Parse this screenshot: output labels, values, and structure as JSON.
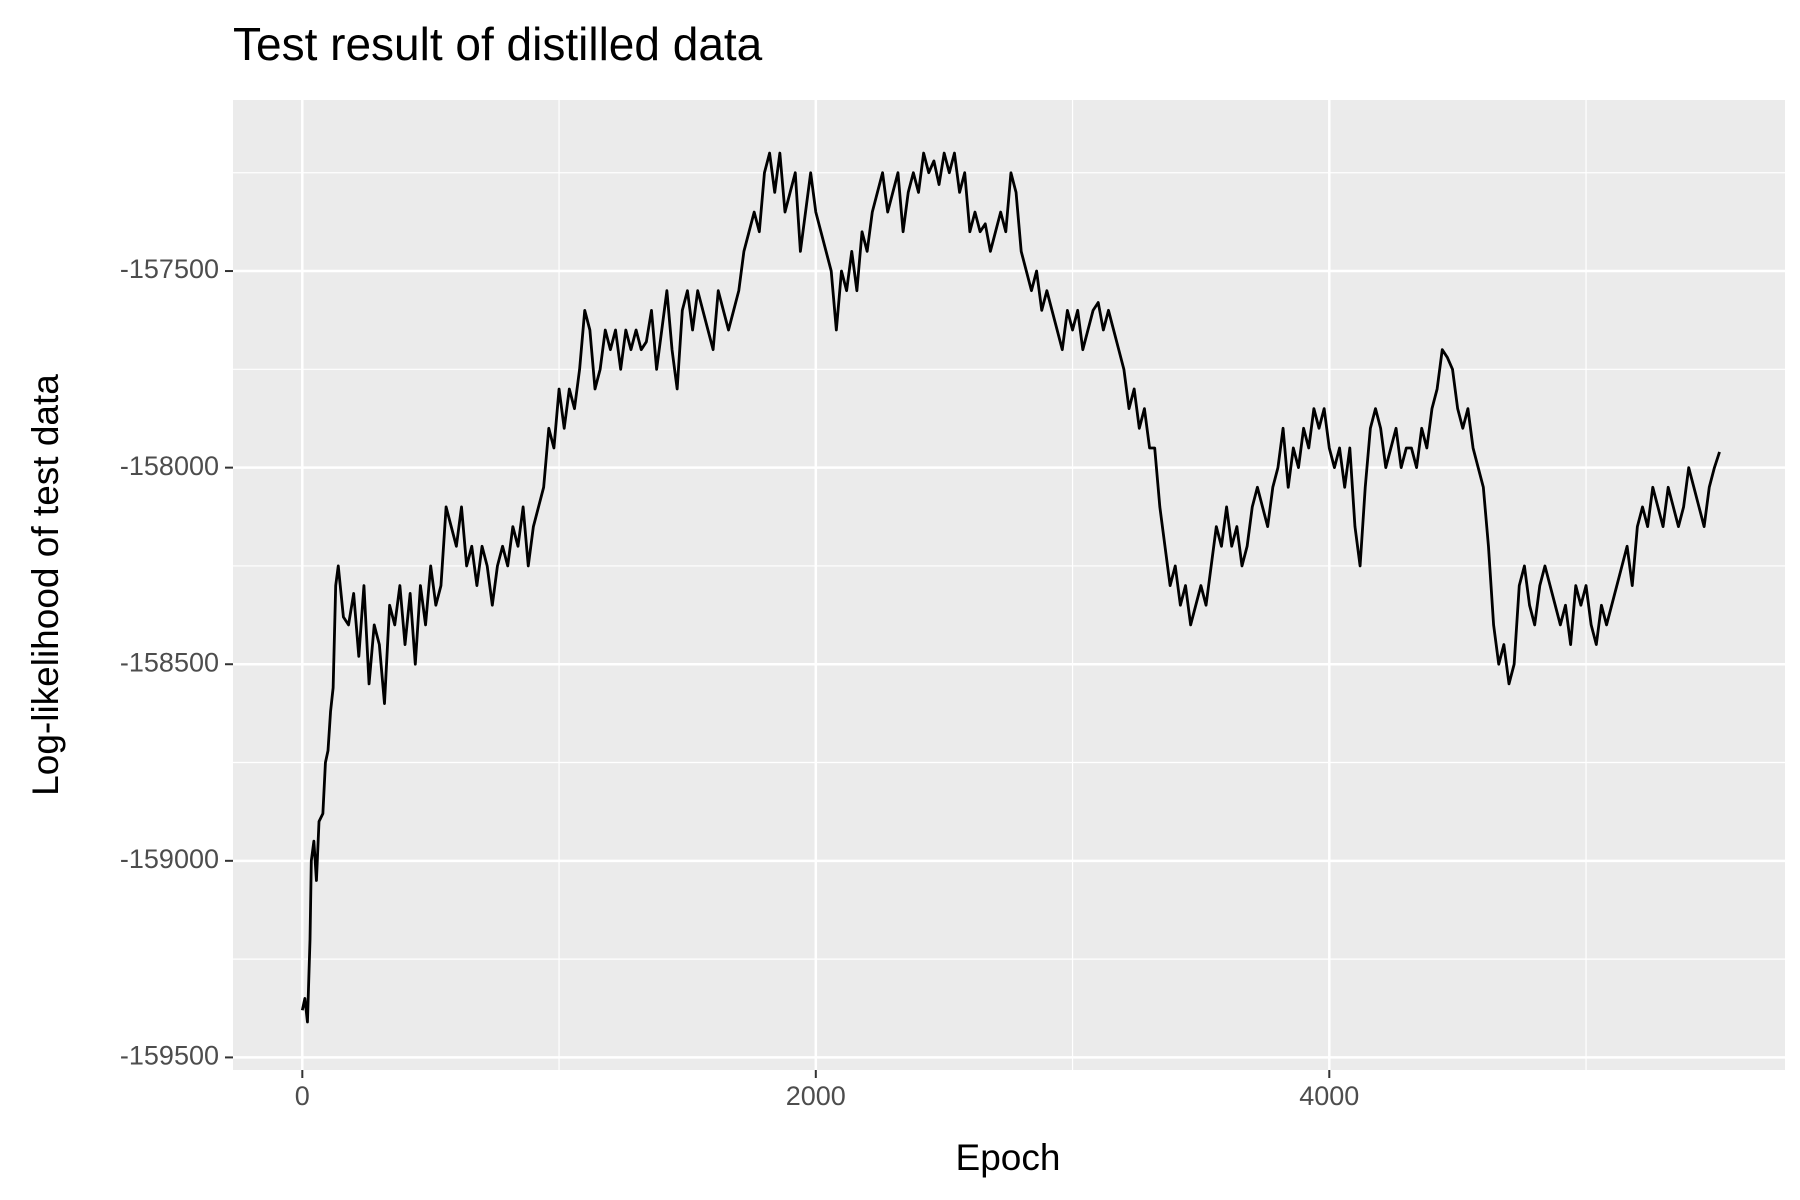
{
  "chart_data": {
    "type": "line",
    "title": "Test result of distilled data",
    "x_label": "Epoch",
    "y_label": "Log-likelihood of test data",
    "xlim": [
      -270,
      5775
    ],
    "ylim": [
      -159532,
      -157065
    ],
    "xticks": [
      0,
      2000,
      4000
    ],
    "yticks": [
      -159500,
      -159000,
      -158500,
      -158000,
      -157500
    ],
    "grid": true,
    "x": [
      0,
      10,
      20,
      30,
      35,
      45,
      55,
      65,
      80,
      90,
      100,
      110,
      120,
      130,
      140,
      160,
      180,
      200,
      220,
      240,
      260,
      280,
      300,
      320,
      340,
      360,
      380,
      400,
      420,
      440,
      460,
      480,
      500,
      520,
      540,
      560,
      580,
      600,
      620,
      640,
      660,
      680,
      700,
      720,
      740,
      760,
      780,
      800,
      820,
      840,
      860,
      880,
      900,
      920,
      940,
      960,
      980,
      1000,
      1020,
      1040,
      1060,
      1080,
      1100,
      1120,
      1140,
      1160,
      1180,
      1200,
      1220,
      1240,
      1260,
      1280,
      1300,
      1320,
      1340,
      1360,
      1380,
      1400,
      1420,
      1440,
      1460,
      1480,
      1500,
      1520,
      1540,
      1560,
      1580,
      1600,
      1620,
      1640,
      1660,
      1680,
      1700,
      1720,
      1740,
      1760,
      1780,
      1800,
      1820,
      1840,
      1860,
      1880,
      1900,
      1920,
      1940,
      1960,
      1980,
      2000,
      2020,
      2040,
      2060,
      2080,
      2100,
      2120,
      2140,
      2160,
      2180,
      2200,
      2220,
      2240,
      2260,
      2280,
      2300,
      2320,
      2340,
      2360,
      2380,
      2400,
      2420,
      2440,
      2460,
      2480,
      2500,
      2520,
      2540,
      2560,
      2580,
      2600,
      2620,
      2640,
      2660,
      2680,
      2700,
      2720,
      2740,
      2760,
      2780,
      2800,
      2820,
      2840,
      2860,
      2880,
      2900,
      2920,
      2940,
      2960,
      2980,
      3000,
      3020,
      3040,
      3060,
      3080,
      3100,
      3120,
      3140,
      3160,
      3180,
      3200,
      3220,
      3240,
      3260,
      3280,
      3300,
      3320,
      3340,
      3360,
      3380,
      3400,
      3420,
      3440,
      3460,
      3480,
      3500,
      3520,
      3540,
      3560,
      3580,
      3600,
      3620,
      3640,
      3660,
      3680,
      3700,
      3720,
      3740,
      3760,
      3780,
      3800,
      3820,
      3840,
      3860,
      3880,
      3900,
      3920,
      3940,
      3960,
      3980,
      4000,
      4020,
      4040,
      4060,
      4080,
      4100,
      4120,
      4140,
      4160,
      4180,
      4200,
      4220,
      4240,
      4260,
      4280,
      4300,
      4320,
      4340,
      4360,
      4380,
      4400,
      4420,
      4440,
      4460,
      4480,
      4500,
      4520,
      4540,
      4560,
      4580,
      4600,
      4620,
      4640,
      4660,
      4680,
      4700,
      4720,
      4740,
      4760,
      4780,
      4800,
      4820,
      4840,
      4860,
      4880,
      4900,
      4920,
      4940,
      4960,
      4980,
      5000,
      5020,
      5040,
      5060,
      5080,
      5100,
      5120,
      5140,
      5160,
      5180,
      5200,
      5220,
      5240,
      5260,
      5280,
      5300,
      5320,
      5340,
      5360,
      5380,
      5400,
      5420,
      5440,
      5460,
      5480,
      5500,
      5520
    ],
    "series": [
      {
        "color": "#000000",
        "values": [
          -159380,
          -159350,
          -159410,
          -159200,
          -159000,
          -158950,
          -159050,
          -158900,
          -158880,
          -158750,
          -158720,
          -158620,
          -158560,
          -158300,
          -158250,
          -158380,
          -158400,
          -158320,
          -158480,
          -158300,
          -158550,
          -158400,
          -158450,
          -158600,
          -158350,
          -158400,
          -158300,
          -158450,
          -158320,
          -158500,
          -158300,
          -158400,
          -158250,
          -158350,
          -158300,
          -158100,
          -158150,
          -158200,
          -158100,
          -158250,
          -158200,
          -158300,
          -158200,
          -158250,
          -158350,
          -158250,
          -158200,
          -158250,
          -158150,
          -158200,
          -158100,
          -158250,
          -158150,
          -158100,
          -158050,
          -157900,
          -157950,
          -157800,
          -157900,
          -157800,
          -157850,
          -157750,
          -157600,
          -157650,
          -157800,
          -157750,
          -157650,
          -157700,
          -157650,
          -157750,
          -157650,
          -157700,
          -157650,
          -157700,
          -157680,
          -157600,
          -157750,
          -157650,
          -157550,
          -157700,
          -157800,
          -157600,
          -157550,
          -157650,
          -157550,
          -157600,
          -157650,
          -157700,
          -157550,
          -157600,
          -157650,
          -157600,
          -157550,
          -157450,
          -157400,
          -157350,
          -157400,
          -157250,
          -157200,
          -157300,
          -157200,
          -157350,
          -157300,
          -157250,
          -157450,
          -157350,
          -157250,
          -157350,
          -157400,
          -157450,
          -157500,
          -157650,
          -157500,
          -157550,
          -157450,
          -157550,
          -157400,
          -157450,
          -157350,
          -157300,
          -157250,
          -157350,
          -157300,
          -157250,
          -157400,
          -157300,
          -157250,
          -157300,
          -157200,
          -157250,
          -157220,
          -157280,
          -157200,
          -157250,
          -157200,
          -157300,
          -157250,
          -157400,
          -157350,
          -157400,
          -157380,
          -157450,
          -157400,
          -157350,
          -157400,
          -157250,
          -157300,
          -157450,
          -157500,
          -157550,
          -157500,
          -157600,
          -157550,
          -157600,
          -157650,
          -157700,
          -157600,
          -157650,
          -157600,
          -157700,
          -157650,
          -157600,
          -157580,
          -157650,
          -157600,
          -157650,
          -157700,
          -157750,
          -157850,
          -157800,
          -157900,
          -157850,
          -157950,
          -157950,
          -158100,
          -158200,
          -158300,
          -158250,
          -158350,
          -158300,
          -158400,
          -158350,
          -158300,
          -158350,
          -158250,
          -158150,
          -158200,
          -158100,
          -158200,
          -158150,
          -158250,
          -158200,
          -158100,
          -158050,
          -158100,
          -158150,
          -158050,
          -158000,
          -157900,
          -158050,
          -157950,
          -158000,
          -157900,
          -157950,
          -157850,
          -157900,
          -157850,
          -157950,
          -158000,
          -157950,
          -158050,
          -157950,
          -158150,
          -158250,
          -158050,
          -157900,
          -157850,
          -157900,
          -158000,
          -157950,
          -157900,
          -158000,
          -157950,
          -157950,
          -158000,
          -157900,
          -157950,
          -157850,
          -157800,
          -157700,
          -157720,
          -157750,
          -157850,
          -157900,
          -157850,
          -157950,
          -158000,
          -158050,
          -158200,
          -158400,
          -158500,
          -158450,
          -158550,
          -158500,
          -158300,
          -158250,
          -158350,
          -158400,
          -158300,
          -158250,
          -158300,
          -158350,
          -158400,
          -158350,
          -158450,
          -158300,
          -158350,
          -158300,
          -158400,
          -158450,
          -158350,
          -158400,
          -158350,
          -158300,
          -158250,
          -158200,
          -158300,
          -158150,
          -158100,
          -158150,
          -158050,
          -158100,
          -158150,
          -158050,
          -158100,
          -158150,
          -158100,
          -158000,
          -158050,
          -158100,
          -158150,
          -158050,
          -158000,
          -157960
        ]
      }
    ]
  }
}
